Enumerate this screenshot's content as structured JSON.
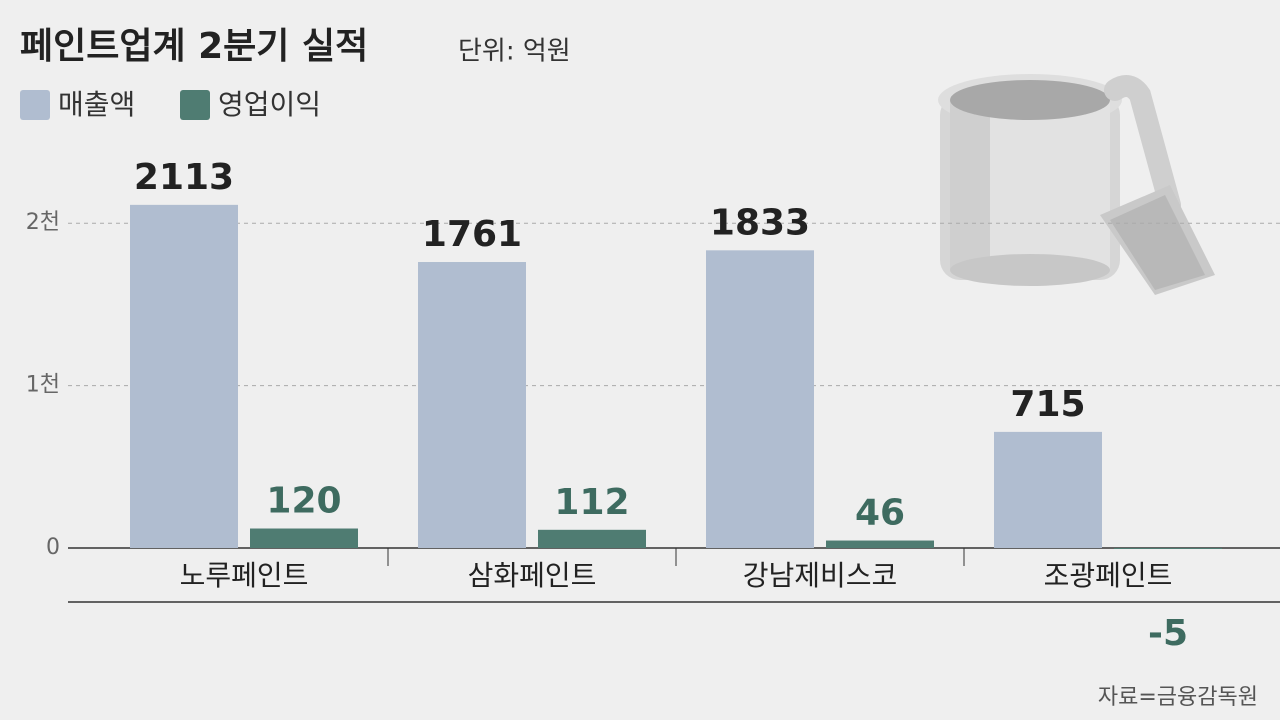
{
  "chart_data": {
    "type": "bar",
    "title": "페인트업계 2분기 실적",
    "subtitle": "단위: 억원",
    "categories": [
      "노루페인트",
      "삼화페인트",
      "강남제비스코",
      "조광페인트"
    ],
    "series": [
      {
        "name": "매출액",
        "color": "#b0bdd0",
        "values": [
          2113,
          1761,
          1833,
          715
        ]
      },
      {
        "name": "영업이익",
        "color": "#4f7c72",
        "values": [
          120,
          112,
          46,
          -5
        ]
      }
    ],
    "ylim": [
      0,
      2500
    ],
    "yticks": [
      0,
      {
        "value": 1000,
        "label": "1천"
      },
      {
        "value": 2000,
        "label": "2천"
      }
    ],
    "grid": true,
    "source": "자료=금융감독원"
  }
}
